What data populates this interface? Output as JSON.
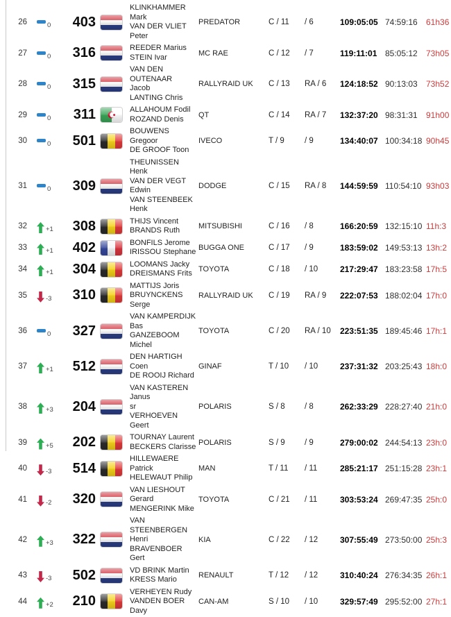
{
  "colors": {
    "up": "#2eae54",
    "down": "#c3274a",
    "same": "#2e84c9",
    "penalty_text": "#cc3c3c"
  },
  "flags": {
    "nl": {
      "orientation": "horizontal",
      "colors": [
        "#cf2b37",
        "#f6f6f6",
        "#2c3f87"
      ]
    },
    "be": {
      "orientation": "vertical",
      "colors": [
        "#2b2b2b",
        "#f5d21a",
        "#e03a3a"
      ]
    },
    "fr": {
      "orientation": "vertical",
      "colors": [
        "#35479c",
        "#f6f6f6",
        "#d8363f"
      ]
    },
    "dz": {
      "orientation": "vertical",
      "colors": [
        "#3aa658",
        "#ffffff"
      ],
      "emblem": "#d21034"
    }
  },
  "rows": [
    {
      "position": "26",
      "change_dir": "same",
      "change_value": "0",
      "car_number": "403",
      "flag": "nl",
      "crew": "KLINKHAMMER Mark\nVAN DER VLIET Peter",
      "team": "PREDATOR",
      "class_rank": "C / 11",
      "group_rank": "/ 6",
      "total_time": "109:05:05",
      "gap": "74:59:16",
      "penalty": "61h36"
    },
    {
      "position": "27",
      "change_dir": "same",
      "change_value": "0",
      "car_number": "316",
      "flag": "nl",
      "crew": "REEDER Marius\nSTEIN Ivar",
      "team": "MC RAE",
      "class_rank": "C / 12",
      "group_rank": "/ 7",
      "total_time": "119:11:01",
      "gap": "85:05:12",
      "penalty": "73h05"
    },
    {
      "position": "28",
      "change_dir": "same",
      "change_value": "0",
      "car_number": "315",
      "flag": "nl",
      "crew": "VAN DEN OUTENAAR\nJacob\nLANTING Chris",
      "team": "RALLYRAID UK",
      "class_rank": "C / 13",
      "group_rank": "RA / 6",
      "total_time": "124:18:52",
      "gap": "90:13:03",
      "penalty": "73h52"
    },
    {
      "position": "29",
      "change_dir": "same",
      "change_value": "0",
      "car_number": "311",
      "flag": "dz",
      "crew": "ALLAHOUM Fodil\nROZAND Denis",
      "team": "QT",
      "class_rank": "C / 14",
      "group_rank": "RA / 7",
      "total_time": "132:37:20",
      "gap": "98:31:31",
      "penalty": "91h00"
    },
    {
      "position": "30",
      "change_dir": "same",
      "change_value": "0",
      "car_number": "501",
      "flag": "be",
      "crew": "BOUWENS Gregoor\nDE GROOF Toon",
      "team": "IVECO",
      "class_rank": "T / 9",
      "group_rank": "/ 9",
      "total_time": "134:40:07",
      "gap": "100:34:18",
      "penalty": "90h45"
    },
    {
      "position": "31",
      "change_dir": "same",
      "change_value": "0",
      "car_number": "309",
      "flag": "nl",
      "crew": "THEUNISSEN Henk\nVAN DER VEGT Edwin\nVAN STEENBEEK Henk",
      "team": "DODGE",
      "class_rank": "C / 15",
      "group_rank": "RA / 8",
      "total_time": "144:59:59",
      "gap": "110:54:10",
      "penalty": "93h03"
    },
    {
      "position": "32",
      "change_dir": "up",
      "change_value": "+1",
      "car_number": "308",
      "flag": "be",
      "crew": "THIJS Vincent\nBRANDS Ruth",
      "team": "MITSUBISHI",
      "class_rank": "C / 16",
      "group_rank": "/ 8",
      "total_time": "166:20:59",
      "gap": "132:15:10",
      "penalty": "11h:3"
    },
    {
      "position": "33",
      "change_dir": "up",
      "change_value": "+1",
      "car_number": "402",
      "flag": "fr",
      "crew": "BONFILS Jerome\nIRISSOU Stephane",
      "team": "BUGGA ONE",
      "class_rank": "C / 17",
      "group_rank": "/ 9",
      "total_time": "183:59:02",
      "gap": "149:53:13",
      "penalty": "13h:2"
    },
    {
      "position": "34",
      "change_dir": "up",
      "change_value": "+1",
      "car_number": "304",
      "flag": "be",
      "crew": "LOOMANS Jacky\nDREISMANS Frits",
      "team": "TOYOTA",
      "class_rank": "C / 18",
      "group_rank": "/ 10",
      "total_time": "217:29:47",
      "gap": "183:23:58",
      "penalty": "17h:5"
    },
    {
      "position": "35",
      "change_dir": "down",
      "change_value": "-3",
      "car_number": "310",
      "flag": "be",
      "crew": "MATTIJS Joris\nBRUYNCKENS Serge",
      "team": "RALLYRAID UK",
      "class_rank": "C / 19",
      "group_rank": "RA / 9",
      "total_time": "222:07:53",
      "gap": "188:02:04",
      "penalty": "17h:0"
    },
    {
      "position": "36",
      "change_dir": "same",
      "change_value": "0",
      "car_number": "327",
      "flag": "nl",
      "crew": "VAN KAMPERDIJK Bas\nGANZEBOOM Michel",
      "team": "TOYOTA",
      "class_rank": "C / 20",
      "group_rank": "RA / 10",
      "total_time": "223:51:35",
      "gap": "189:45:46",
      "penalty": "17h:1"
    },
    {
      "position": "37",
      "change_dir": "up",
      "change_value": "+1",
      "car_number": "512",
      "flag": "nl",
      "crew": "DEN HARTIGH Coen\nDE ROOIJ Richard",
      "team": "GINAF",
      "class_rank": "T / 10",
      "group_rank": "/ 10",
      "total_time": "237:31:32",
      "gap": "203:25:43",
      "penalty": "18h:0"
    },
    {
      "position": "38",
      "change_dir": "up",
      "change_value": "+3",
      "car_number": "204",
      "flag": "nl",
      "crew": "VAN KASTEREN Janus\nsr\nVERHOEVEN Geert",
      "team": "POLARIS",
      "class_rank": "S / 8",
      "group_rank": "/ 8",
      "total_time": "262:33:29",
      "gap": "228:27:40",
      "penalty": "21h:0"
    },
    {
      "position": "39",
      "change_dir": "up",
      "change_value": "+5",
      "car_number": "202",
      "flag": "be",
      "crew": "TOURNAY Laurent\nBECKERS Clarisse",
      "team": "POLARIS",
      "class_rank": "S / 9",
      "group_rank": "/ 9",
      "total_time": "279:00:02",
      "gap": "244:54:13",
      "penalty": "23h:0"
    },
    {
      "position": "40",
      "change_dir": "down",
      "change_value": "-3",
      "car_number": "514",
      "flag": "be",
      "crew": "HILLEWAERE Patrick\nHELEWAUT Philip",
      "team": "MAN",
      "class_rank": "T / 11",
      "group_rank": "/ 11",
      "total_time": "285:21:17",
      "gap": "251:15:28",
      "penalty": "23h:1"
    },
    {
      "position": "41",
      "change_dir": "down",
      "change_value": "-2",
      "car_number": "320",
      "flag": "nl",
      "crew": "VAN LIESHOUT Gerard\nMENGERINK Mike",
      "team": "TOYOTA",
      "class_rank": "C / 21",
      "group_rank": "/ 11",
      "total_time": "303:53:24",
      "gap": "269:47:35",
      "penalty": "25h:0"
    },
    {
      "position": "42",
      "change_dir": "up",
      "change_value": "+3",
      "car_number": "322",
      "flag": "nl",
      "crew": "VAN STEENBERGEN\nHenri\nBRAVENBOER Gert",
      "team": "KIA",
      "class_rank": "C / 22",
      "group_rank": "/ 12",
      "total_time": "307:55:49",
      "gap": "273:50:00",
      "penalty": "25h:3"
    },
    {
      "position": "43",
      "change_dir": "down",
      "change_value": "-3",
      "car_number": "502",
      "flag": "nl",
      "crew": "VD BRINK Martin\nKRESS Mario",
      "team": "RENAULT",
      "class_rank": "T / 12",
      "group_rank": "/ 12",
      "total_time": "310:40:24",
      "gap": "276:34:35",
      "penalty": "26h:1"
    },
    {
      "position": "44",
      "change_dir": "up",
      "change_value": "+2",
      "car_number": "210",
      "flag": "be",
      "crew": "VERHEYEN Rudy\nVANDEN BOER Davy",
      "team": "CAN-AM",
      "class_rank": "S / 10",
      "group_rank": "/ 10",
      "total_time": "329:57:49",
      "gap": "295:52:00",
      "penalty": "27h:1"
    }
  ]
}
